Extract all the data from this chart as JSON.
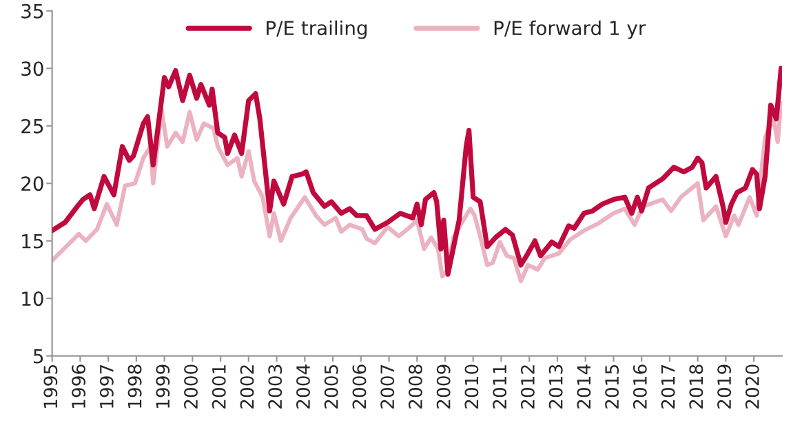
{
  "chart_data": {
    "type": "line",
    "grid": false,
    "legend": "top",
    "marker": "none",
    "line_style": "solid",
    "xlim": [
      1995,
      2021
    ],
    "xticks": [
      1995,
      1996,
      1997,
      1998,
      1999,
      2000,
      2001,
      2002,
      2003,
      2004,
      2005,
      2006,
      2007,
      2008,
      2009,
      2010,
      2011,
      2012,
      2013,
      2014,
      2015,
      2016,
      2017,
      2018,
      2019,
      2020
    ],
    "ylim": [
      5,
      35
    ],
    "yticks": [
      5,
      10,
      15,
      20,
      25,
      30,
      35
    ],
    "series": [
      {
        "name": "P/E trailing",
        "color": "#c00a3e",
        "x": [
          1995.0,
          1995.46,
          1995.9,
          1996.1,
          1996.35,
          1996.5,
          1996.85,
          1997.2,
          1997.5,
          1997.75,
          1997.9,
          1998.25,
          1998.4,
          1998.6,
          1999.0,
          1999.15,
          1999.4,
          1999.65,
          1999.9,
          2000.15,
          2000.3,
          2000.6,
          2000.7,
          2000.9,
          2001.15,
          2001.25,
          2001.5,
          2001.75,
          2002.0,
          2002.25,
          2002.4,
          2002.75,
          2002.9,
          2003.25,
          2003.55,
          2003.9,
          2004.05,
          2004.3,
          2004.7,
          2004.95,
          2005.3,
          2005.6,
          2005.85,
          2006.2,
          2006.5,
          2006.95,
          2007.4,
          2007.85,
          2008.0,
          2008.15,
          2008.3,
          2008.6,
          2008.7,
          2008.85,
          2008.95,
          2009.1,
          2009.5,
          2009.75,
          2009.85,
          2010.0,
          2010.25,
          2010.5,
          2010.8,
          2011.15,
          2011.4,
          2011.7,
          2011.9,
          2012.2,
          2012.4,
          2012.8,
          2013.05,
          2013.4,
          2013.6,
          2013.95,
          2014.25,
          2014.6,
          2015.0,
          2015.4,
          2015.65,
          2015.85,
          2016.0,
          2016.25,
          2016.75,
          2017.15,
          2017.5,
          2017.8,
          2018.0,
          2018.15,
          2018.3,
          2018.65,
          2018.9,
          2019.0,
          2019.2,
          2019.4,
          2019.7,
          2019.95,
          2020.1,
          2020.2,
          2020.4,
          2020.6,
          2020.8,
          2020.97
        ],
        "values": [
          15.9,
          16.6,
          18.0,
          18.6,
          19.0,
          17.8,
          20.6,
          19.0,
          23.2,
          22.0,
          22.4,
          25.2,
          25.8,
          21.6,
          29.2,
          28.4,
          29.8,
          27.2,
          29.4,
          27.4,
          28.6,
          26.8,
          28.2,
          24.4,
          24.0,
          22.6,
          24.2,
          22.6,
          27.2,
          27.8,
          25.6,
          17.6,
          20.2,
          18.2,
          20.6,
          20.8,
          21.0,
          19.2,
          18.0,
          18.4,
          17.4,
          17.8,
          17.2,
          17.2,
          16.0,
          16.6,
          17.4,
          17.0,
          18.2,
          16.4,
          18.6,
          19.2,
          18.4,
          14.3,
          16.8,
          12.1,
          16.8,
          23.2,
          24.6,
          18.8,
          18.4,
          14.5,
          15.3,
          16.0,
          15.5,
          12.9,
          13.7,
          15.0,
          13.7,
          14.9,
          14.5,
          16.3,
          16.1,
          17.4,
          17.6,
          18.2,
          18.6,
          18.8,
          17.4,
          18.8,
          17.6,
          19.6,
          20.4,
          21.4,
          21.0,
          21.4,
          22.2,
          21.8,
          19.6,
          20.6,
          18.0,
          16.6,
          18.2,
          19.2,
          19.6,
          21.2,
          20.8,
          17.8,
          20.6,
          26.8,
          25.6,
          30.0
        ]
      },
      {
        "name": "P/E forward 1 yr",
        "color": "#ebb3c1",
        "x": [
          1995.0,
          1995.46,
          1995.95,
          1996.2,
          1996.6,
          1996.95,
          1997.3,
          1997.6,
          1997.95,
          1998.25,
          1998.5,
          1998.6,
          1998.9,
          1999.1,
          1999.4,
          1999.65,
          1999.9,
          2000.15,
          2000.4,
          2000.75,
          2000.9,
          2001.25,
          2001.6,
          2001.75,
          2002.0,
          2002.2,
          2002.5,
          2002.75,
          2002.9,
          2003.15,
          2003.5,
          2004.0,
          2004.4,
          2004.7,
          2005.1,
          2005.3,
          2005.6,
          2006.05,
          2006.2,
          2006.5,
          2006.95,
          2007.35,
          2007.75,
          2008.0,
          2008.25,
          2008.5,
          2008.75,
          2008.9,
          2009.1,
          2009.3,
          2009.65,
          2009.9,
          2010.05,
          2010.3,
          2010.5,
          2010.7,
          2010.95,
          2011.2,
          2011.45,
          2011.7,
          2011.95,
          2012.3,
          2012.55,
          2013.05,
          2013.45,
          2013.95,
          2014.45,
          2015.0,
          2015.4,
          2015.75,
          2016.05,
          2016.75,
          2017.05,
          2017.4,
          2018.0,
          2018.2,
          2018.65,
          2019.0,
          2019.3,
          2019.45,
          2019.85,
          2020.1,
          2020.4,
          2020.7,
          2020.85,
          2020.97
        ],
        "values": [
          13.3,
          14.4,
          15.6,
          15.0,
          16.0,
          18.2,
          16.4,
          19.8,
          20.0,
          22.2,
          23.2,
          20.0,
          26.4,
          23.2,
          24.4,
          23.6,
          26.2,
          23.8,
          25.2,
          24.8,
          23.2,
          21.6,
          22.2,
          20.6,
          22.8,
          20.2,
          18.8,
          15.4,
          17.4,
          15.0,
          17.0,
          18.8,
          17.2,
          16.4,
          17.0,
          15.8,
          16.4,
          16.0,
          15.2,
          14.8,
          16.2,
          15.4,
          16.2,
          16.8,
          14.3,
          15.3,
          14.3,
          11.9,
          12.5,
          15.3,
          16.8,
          17.8,
          17.2,
          14.9,
          12.9,
          13.1,
          14.9,
          13.7,
          13.5,
          11.5,
          12.9,
          12.5,
          13.5,
          13.9,
          15.1,
          15.9,
          16.5,
          17.4,
          17.8,
          16.4,
          18.0,
          18.6,
          17.6,
          18.8,
          20.0,
          16.8,
          18.0,
          15.4,
          17.2,
          16.4,
          18.8,
          17.2,
          24.0,
          25.6,
          23.6,
          27.0
        ]
      }
    ]
  }
}
